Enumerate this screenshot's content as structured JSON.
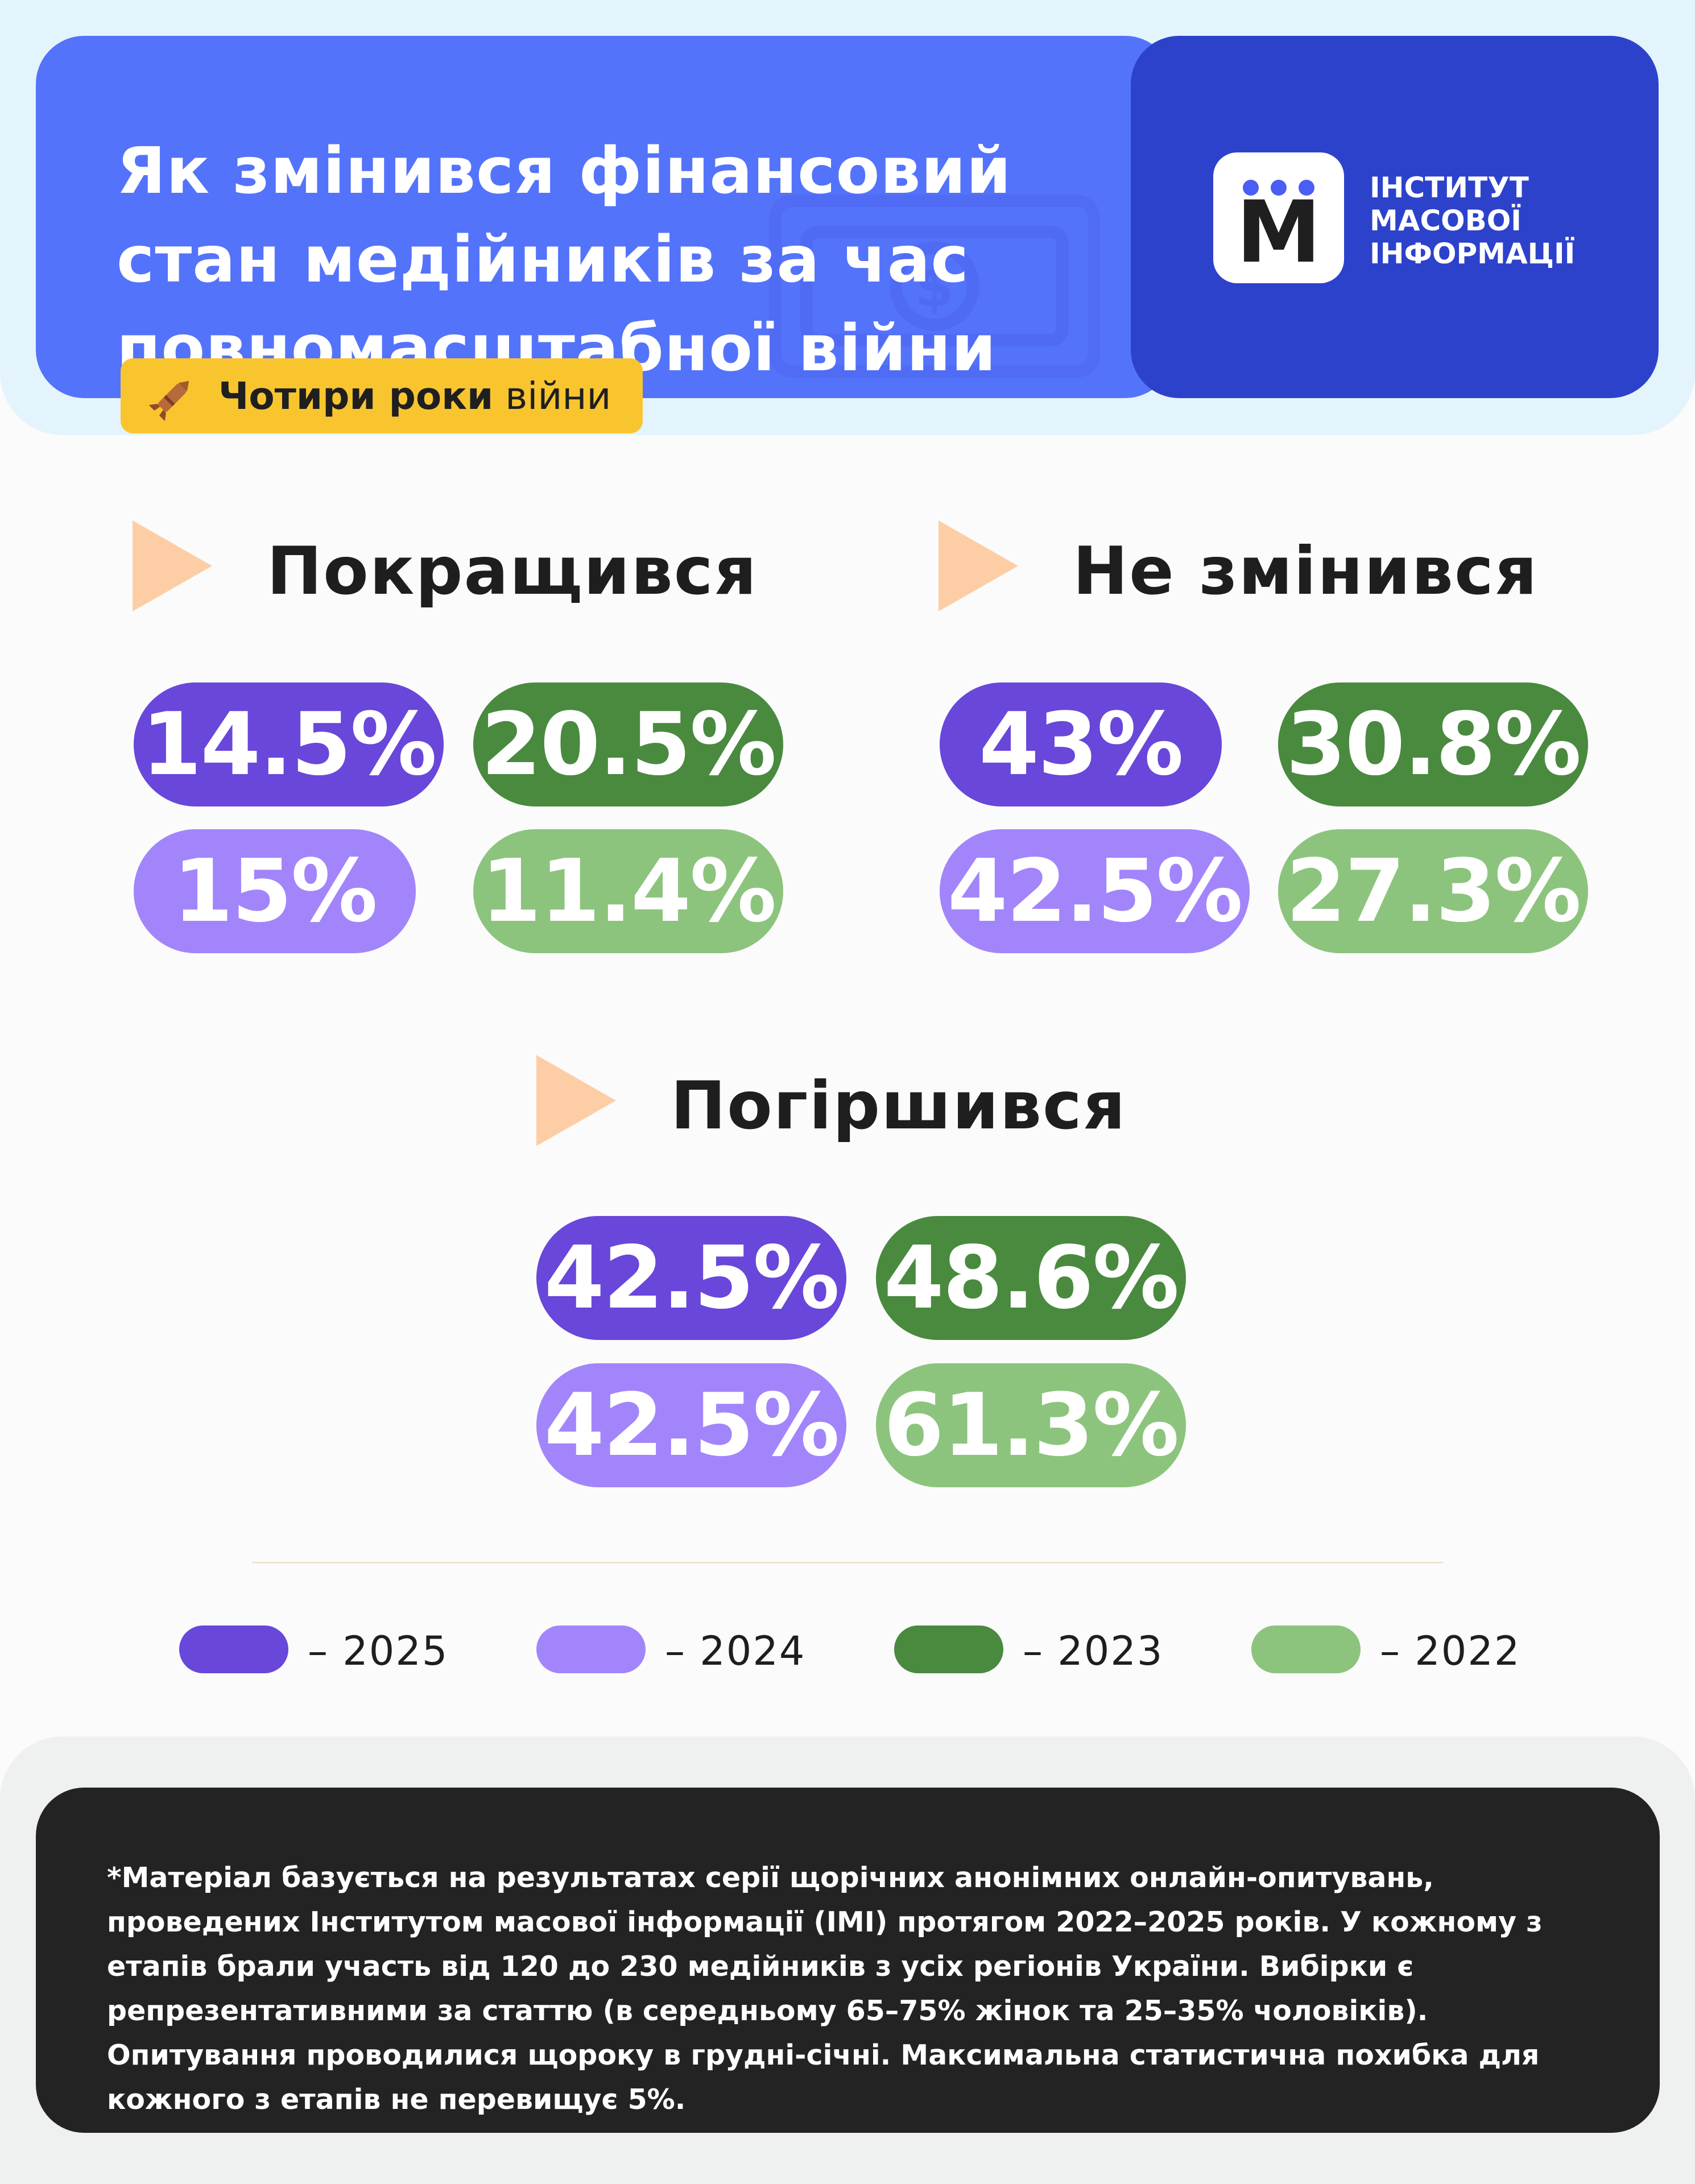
{
  "header": {
    "title": "Як змінився фінансовий\nстан медійників за час\nповномасштабної війни",
    "tag": {
      "bold": "Чотири роки",
      "regular": " війни",
      "icon": "missile-icon"
    }
  },
  "logo": {
    "mark": "M",
    "lines": [
      "ІНСТИТУТ",
      "МАСОВОЇ",
      "ІНФОРМАЦІЇ"
    ]
  },
  "sections": [
    {
      "title": "Покращився",
      "values": {
        "y2025": "14.5%",
        "y2023": "20.5%",
        "y2024": "15%",
        "y2022": "11.4%"
      }
    },
    {
      "title": "Не змінився",
      "values": {
        "y2025": "43%",
        "y2023": "30.8%",
        "y2024": "42.5%",
        "y2022": "27.3%"
      }
    },
    {
      "title": "Погіршився",
      "values": {
        "y2025": "42.5%",
        "y2023": "48.6%",
        "y2024": "42.5%",
        "y2022": "61.3%"
      }
    }
  ],
  "legend": [
    {
      "label": "– 2025",
      "color": "#6847da"
    },
    {
      "label": "– 2024",
      "color": "#a285fb"
    },
    {
      "label": "– 2023",
      "color": "#498a3f"
    },
    {
      "label": "– 2022",
      "color": "#8cc47d"
    }
  ],
  "footer": {
    "note": "*Матеріал базується на результатах серії щорічних анонімних онлайн-опитувань, проведених Інститутом масової інформації (ІМІ) протягом 2022–2025 років. У кожному з етапів брали участь від 120 до 230 медійників з усіх регіонів України. Вибірки є репрезентативними за статтю (в середньому 65–75% жінок та 25–35% чоловіків). Опитування проводилися щороку в грудні-січні. Максимальна статистична похибка для кожного з етапів не перевищує 5%."
  },
  "colors": {
    "header_blue": "#5473fb",
    "logo_blue": "#2d42cb",
    "tag_yellow": "#f9c52f",
    "play_orange": "#fdcea6",
    "y2025": "#6847da",
    "y2024": "#a285fb",
    "y2023": "#498a3f",
    "y2022": "#8cc47d"
  }
}
